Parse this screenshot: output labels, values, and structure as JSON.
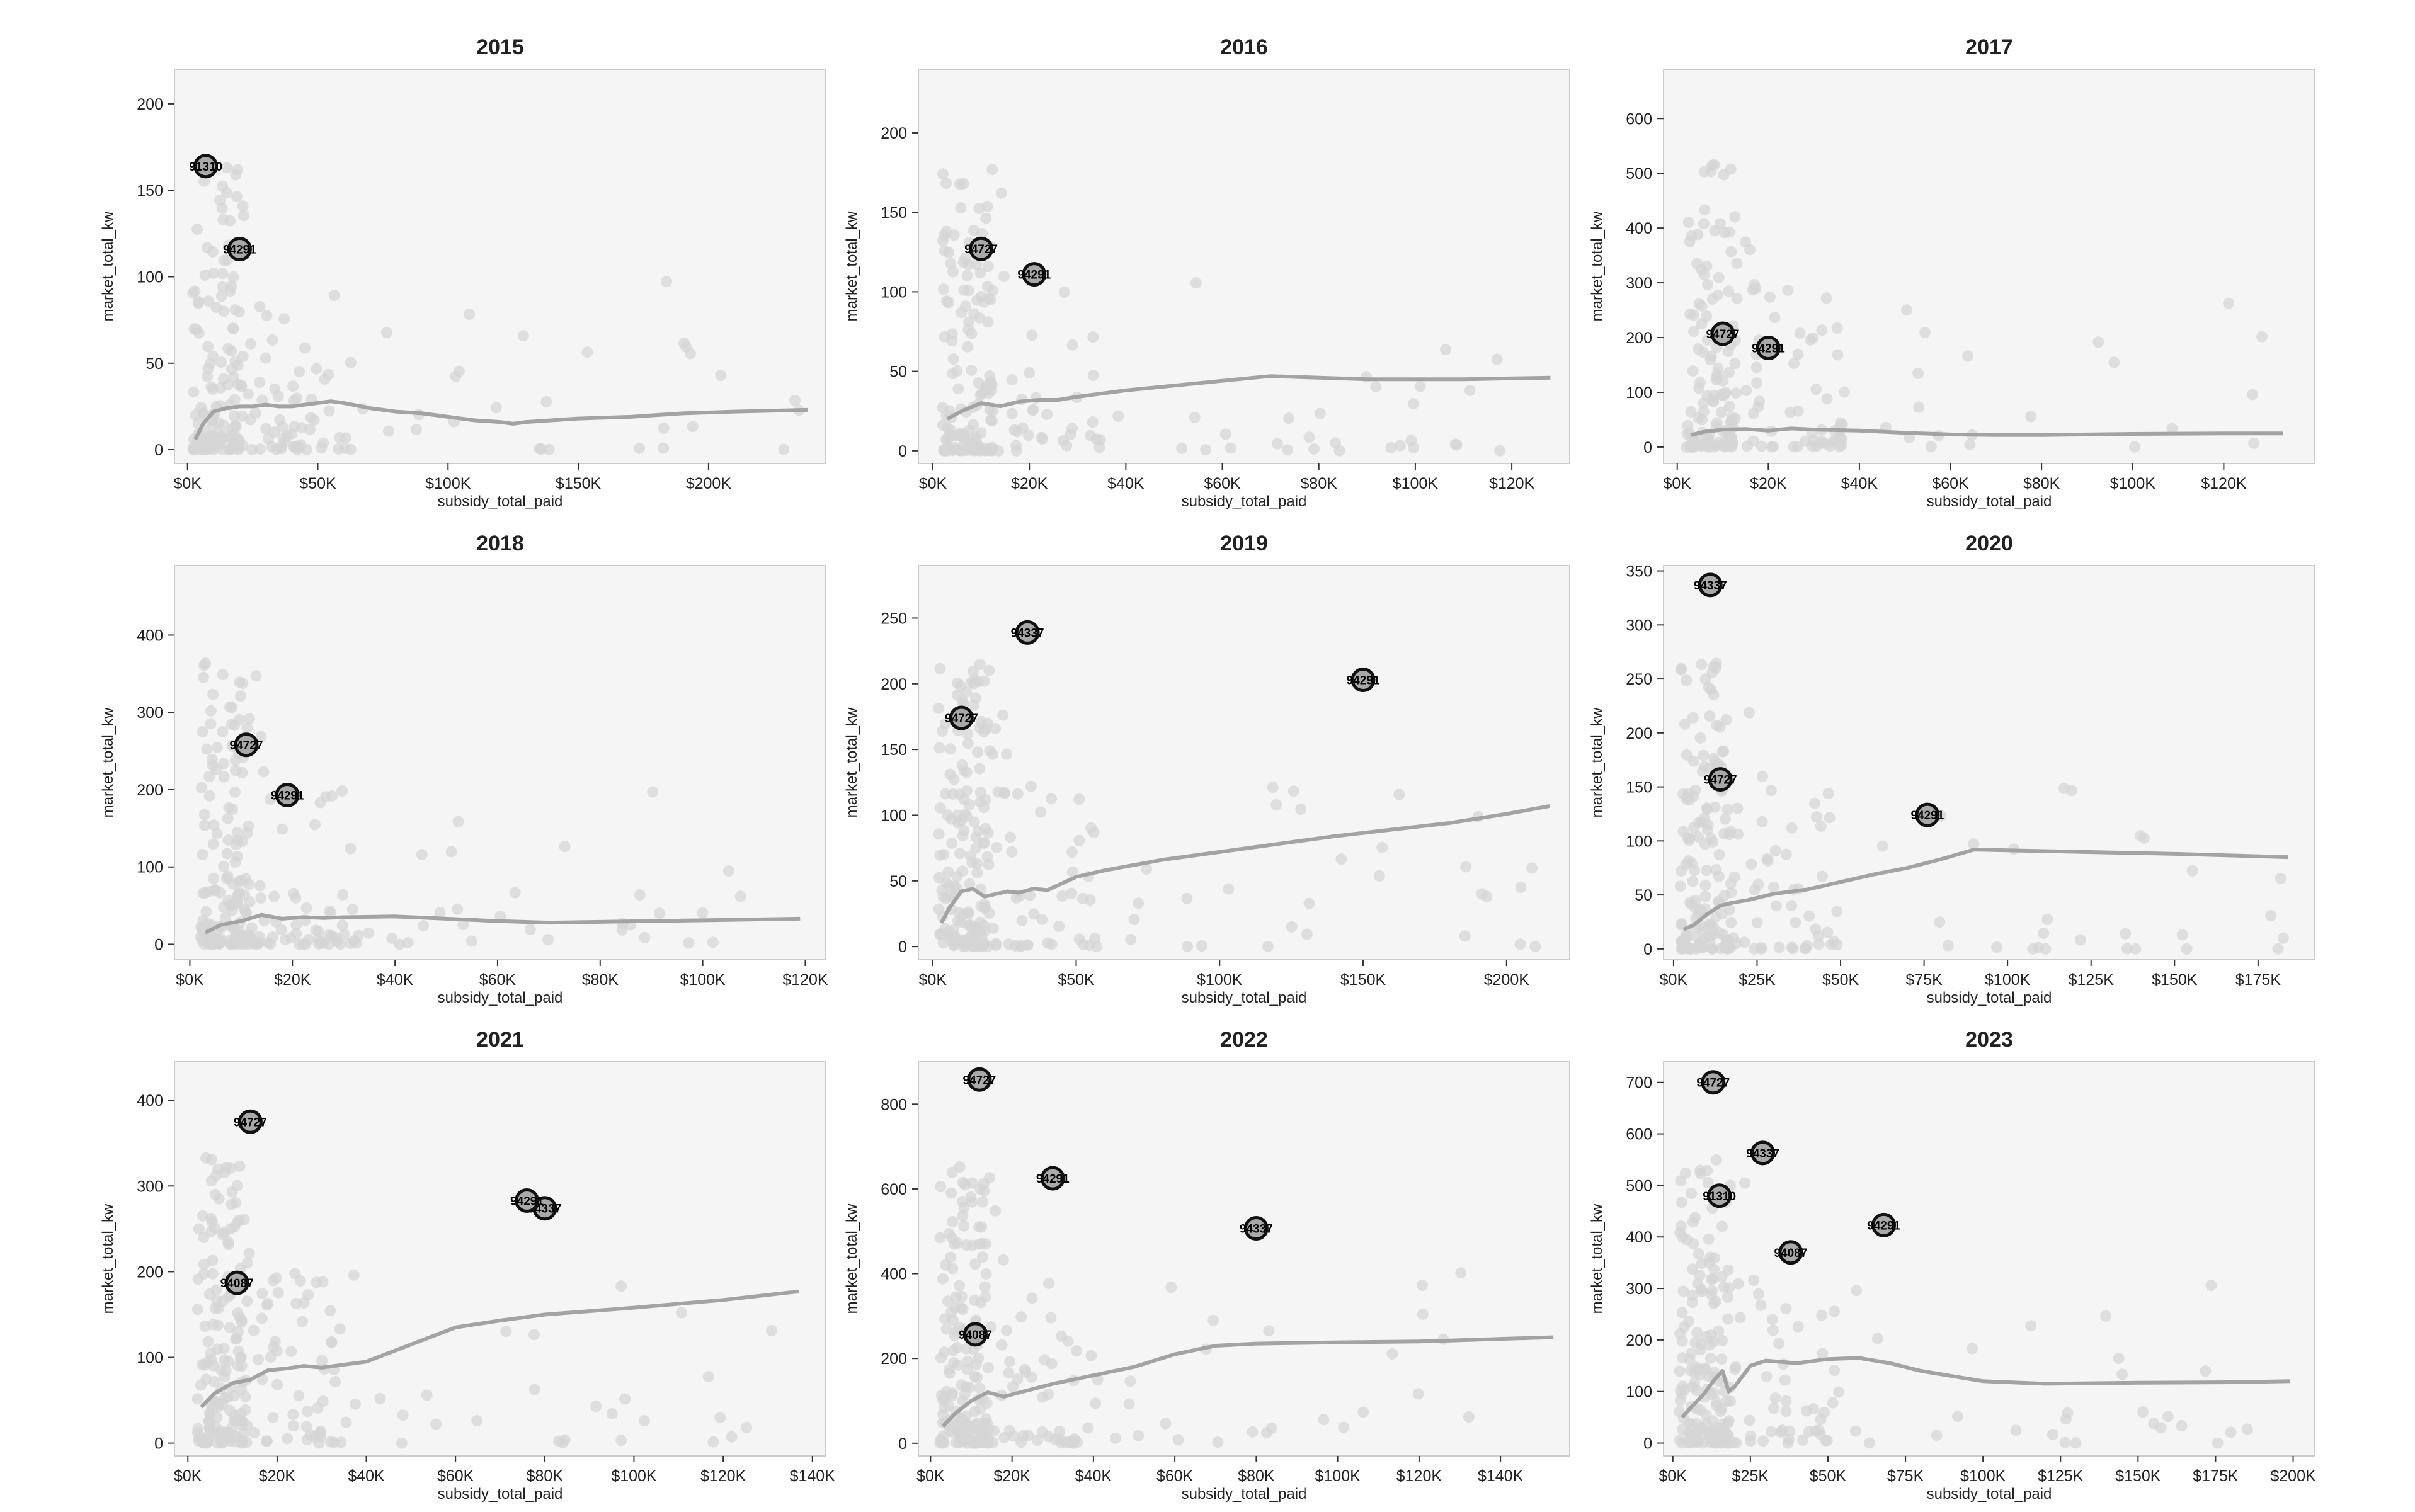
{
  "colors": {
    "panel_bg": "#f5f5f5",
    "panel_border": "#cccccc",
    "points": "#d4d4d4",
    "trend": "#a3a3a3",
    "highlight_fill": "#a9a9a9",
    "highlight_stroke": "#111111",
    "text": "#222222"
  },
  "chart_data": [
    {
      "type": "scatter",
      "title": "2015",
      "xlabel": "subsidy_total_paid",
      "ylabel": "market_total_kw",
      "xlim": [
        -5000,
        245000
      ],
      "ylim": [
        -8,
        220
      ],
      "xticks": [
        0,
        50000,
        100000,
        150000,
        200000
      ],
      "xtick_labels": [
        "$0K",
        "$50K",
        "$100K",
        "$150K",
        "$200K"
      ],
      "yticks": [
        0,
        50,
        100,
        150,
        200
      ],
      "grid": false,
      "trend": {
        "x": [
          3000,
          6000,
          10000,
          15000,
          20000,
          25000,
          30000,
          35000,
          40000,
          50000,
          55000,
          60000,
          70000,
          80000,
          90000,
          100000,
          110000,
          120000,
          125000,
          130000,
          150000,
          170000,
          190000,
          210000,
          238000
        ],
        "y": [
          6,
          15,
          22,
          24,
          25,
          25,
          26,
          25,
          25,
          27,
          28,
          27,
          24,
          22,
          21,
          19,
          17,
          16,
          15,
          16,
          18,
          19,
          21,
          22,
          23
        ]
      },
      "highlights": [
        {
          "label": "91310",
          "x": 7000,
          "y": 164
        },
        {
          "label": "94291",
          "x": 20000,
          "y": 116
        }
      ],
      "scatter_density": 220
    },
    {
      "type": "scatter",
      "title": "2016",
      "xlabel": "subsidy_total_paid",
      "ylabel": "market_total_kw",
      "xlim": [
        -3000,
        132000
      ],
      "ylim": [
        -8,
        240
      ],
      "xticks": [
        0,
        20000,
        40000,
        60000,
        80000,
        100000,
        120000
      ],
      "xtick_labels": [
        "$0K",
        "$20K",
        "$40K",
        "$60K",
        "$80K",
        "$100K",
        "$120K"
      ],
      "yticks": [
        0,
        50,
        100,
        150,
        200
      ],
      "grid": false,
      "trend": {
        "x": [
          3000,
          6000,
          10000,
          14000,
          18000,
          22000,
          26000,
          30000,
          40000,
          50000,
          60000,
          70000,
          80000,
          90000,
          110000,
          128000
        ],
        "y": [
          20,
          25,
          30,
          28,
          31,
          32,
          32,
          34,
          38,
          41,
          44,
          47,
          46,
          45,
          45,
          46
        ]
      },
      "highlights": [
        {
          "label": "94727",
          "x": 10000,
          "y": 127
        },
        {
          "label": "94291",
          "x": 21000,
          "y": 111
        }
      ],
      "scatter_density": 200
    },
    {
      "type": "scatter",
      "title": "2017",
      "xlabel": "subsidy_total_paid",
      "ylabel": "market_total_kw",
      "xlim": [
        -3000,
        140000
      ],
      "ylim": [
        -30,
        690
      ],
      "xticks": [
        0,
        20000,
        40000,
        60000,
        80000,
        100000,
        120000
      ],
      "xtick_labels": [
        "$0K",
        "$20K",
        "$40K",
        "$60K",
        "$80K",
        "$100K",
        "$120K"
      ],
      "yticks": [
        0,
        100,
        200,
        300,
        400,
        500,
        600
      ],
      "grid": false,
      "trend": {
        "x": [
          3000,
          6000,
          10000,
          15000,
          20000,
          25000,
          30000,
          40000,
          50000,
          60000,
          70000,
          80000,
          100000,
          120000,
          133000
        ],
        "y": [
          22,
          28,
          32,
          33,
          30,
          34,
          32,
          30,
          26,
          23,
          22,
          22,
          24,
          25,
          25
        ]
      },
      "highlights": [
        {
          "label": "94727",
          "x": 10000,
          "y": 207
        },
        {
          "label": "94291",
          "x": 20000,
          "y": 181
        }
      ],
      "scatter_density": 200
    },
    {
      "type": "scatter",
      "title": "2018",
      "xlabel": "subsidy_total_paid",
      "ylabel": "market_total_kw",
      "xlim": [
        -3000,
        124000
      ],
      "ylim": [
        -20,
        490
      ],
      "xticks": [
        0,
        20000,
        40000,
        60000,
        80000,
        100000,
        120000
      ],
      "xtick_labels": [
        "$0K",
        "$20K",
        "$40K",
        "$60K",
        "$80K",
        "$100K",
        "$120K"
      ],
      "yticks": [
        0,
        100,
        200,
        300,
        400
      ],
      "grid": false,
      "trend": {
        "x": [
          3000,
          6000,
          10000,
          14000,
          18000,
          22000,
          26000,
          30000,
          40000,
          50000,
          60000,
          70000,
          80000,
          100000,
          119000
        ],
        "y": [
          15,
          25,
          30,
          38,
          33,
          35,
          34,
          35,
          36,
          33,
          30,
          28,
          29,
          31,
          33
        ]
      },
      "highlights": [
        {
          "label": "94727",
          "x": 11000,
          "y": 258
        },
        {
          "label": "94291",
          "x": 19000,
          "y": 193
        }
      ],
      "scatter_density": 240
    },
    {
      "type": "scatter",
      "title": "2019",
      "xlabel": "subsidy_total_paid",
      "ylabel": "market_total_kw",
      "xlim": [
        -5000,
        222000
      ],
      "ylim": [
        -10,
        290
      ],
      "xticks": [
        0,
        50000,
        100000,
        150000,
        200000
      ],
      "xtick_labels": [
        "$0K",
        "$50K",
        "$100K",
        "$150K",
        "$200K"
      ],
      "yticks": [
        0,
        50,
        100,
        150,
        200,
        250
      ],
      "grid": false,
      "trend": {
        "x": [
          3000,
          6000,
          10000,
          14000,
          18000,
          22000,
          26000,
          30000,
          35000,
          40000,
          50000,
          60000,
          80000,
          100000,
          120000,
          140000,
          160000,
          180000,
          200000,
          215000
        ],
        "y": [
          18,
          30,
          42,
          44,
          38,
          40,
          42,
          41,
          44,
          43,
          53,
          58,
          66,
          72,
          78,
          84,
          89,
          94,
          101,
          107
        ]
      },
      "highlights": [
        {
          "label": "94337",
          "x": 33000,
          "y": 239
        },
        {
          "label": "94727",
          "x": 10000,
          "y": 174
        },
        {
          "label": "94291",
          "x": 150000,
          "y": 203
        }
      ],
      "scatter_density": 230
    },
    {
      "type": "scatter",
      "title": "2020",
      "xlabel": "subsidy_total_paid",
      "ylabel": "market_total_kw",
      "xlim": [
        -3000,
        192000
      ],
      "ylim": [
        -10,
        355
      ],
      "xticks": [
        0,
        25000,
        50000,
        75000,
        100000,
        125000,
        150000,
        175000
      ],
      "xtick_labels": [
        "$0K",
        "$25K",
        "$50K",
        "$75K",
        "$100K",
        "$125K",
        "$150K",
        "$175K"
      ],
      "yticks": [
        0,
        50,
        100,
        150,
        200,
        250,
        300,
        350
      ],
      "grid": false,
      "trend": {
        "x": [
          3000,
          6000,
          10000,
          14000,
          18000,
          22000,
          26000,
          30000,
          40000,
          50000,
          60000,
          70000,
          80000,
          90000,
          120000,
          150000,
          184000
        ],
        "y": [
          18,
          22,
          32,
          40,
          43,
          45,
          48,
          51,
          55,
          62,
          69,
          75,
          83,
          92,
          90,
          88,
          85
        ]
      },
      "highlights": [
        {
          "label": "94337",
          "x": 11000,
          "y": 337
        },
        {
          "label": "94727",
          "x": 14000,
          "y": 157
        },
        {
          "label": "94291",
          "x": 76000,
          "y": 124
        }
      ],
      "scatter_density": 220
    },
    {
      "type": "scatter",
      "title": "2021",
      "xlabel": "subsidy_total_paid",
      "ylabel": "market_total_kw",
      "xlim": [
        -3000,
        143000
      ],
      "ylim": [
        -15,
        445
      ],
      "xticks": [
        0,
        20000,
        40000,
        60000,
        80000,
        100000,
        120000,
        140000
      ],
      "xtick_labels": [
        "$0K",
        "$20K",
        "$40K",
        "$60K",
        "$80K",
        "$100K",
        "$120K",
        "$140K"
      ],
      "yticks": [
        0,
        100,
        200,
        300,
        400
      ],
      "grid": false,
      "trend": {
        "x": [
          3000,
          6000,
          10000,
          14000,
          18000,
          22000,
          26000,
          30000,
          40000,
          50000,
          60000,
          70000,
          80000,
          100000,
          120000,
          137000
        ],
        "y": [
          42,
          58,
          70,
          74,
          85,
          87,
          90,
          88,
          95,
          115,
          135,
          143,
          150,
          158,
          167,
          177
        ]
      },
      "highlights": [
        {
          "label": "94727",
          "x": 14000,
          "y": 375
        },
        {
          "label": "94337",
          "x": 80000,
          "y": 274
        },
        {
          "label": "94291",
          "x": 76000,
          "y": 283
        },
        {
          "label": "94087",
          "x": 11000,
          "y": 187
        }
      ],
      "scatter_density": 240
    },
    {
      "type": "scatter",
      "title": "2022",
      "xlabel": "subsidy_total_paid",
      "ylabel": "market_total_kw",
      "xlim": [
        -3000,
        157000
      ],
      "ylim": [
        -30,
        900
      ],
      "xticks": [
        0,
        20000,
        40000,
        60000,
        80000,
        100000,
        120000,
        140000
      ],
      "xtick_labels": [
        "$0K",
        "$20K",
        "$40K",
        "$60K",
        "$80K",
        "$100K",
        "$120K",
        "$140K"
      ],
      "yticks": [
        0,
        200,
        400,
        600,
        800
      ],
      "grid": false,
      "trend": {
        "x": [
          3000,
          6000,
          10000,
          14000,
          18000,
          22000,
          26000,
          30000,
          40000,
          50000,
          60000,
          70000,
          80000,
          100000,
          120000,
          153000
        ],
        "y": [
          40,
          70,
          100,
          120,
          110,
          120,
          130,
          140,
          160,
          180,
          210,
          230,
          235,
          238,
          240,
          250
        ]
      },
      "highlights": [
        {
          "label": "94727",
          "x": 12000,
          "y": 858
        },
        {
          "label": "94291",
          "x": 30000,
          "y": 625
        },
        {
          "label": "94337",
          "x": 80000,
          "y": 507
        },
        {
          "label": "94087",
          "x": 11000,
          "y": 257
        }
      ],
      "scatter_density": 240
    },
    {
      "type": "scatter",
      "title": "2023",
      "xlabel": "subsidy_total_paid",
      "ylabel": "market_total_kw",
      "xlim": [
        -3000,
        207000
      ],
      "ylim": [
        -25,
        740
      ],
      "xticks": [
        0,
        25000,
        50000,
        75000,
        100000,
        125000,
        150000,
        175000,
        200000
      ],
      "xtick_labels": [
        "$0K",
        "$25K",
        "$50K",
        "$75K",
        "$100K",
        "$125K",
        "$150K",
        "$175K",
        "$200K"
      ],
      "yticks": [
        0,
        100,
        200,
        300,
        400,
        500,
        600,
        700
      ],
      "grid": false,
      "trend": {
        "x": [
          3000,
          6000,
          10000,
          13000,
          16000,
          18000,
          20000,
          25000,
          30000,
          40000,
          50000,
          60000,
          70000,
          80000,
          90000,
          100000,
          120000,
          150000,
          180000,
          199000
        ],
        "y": [
          50,
          70,
          95,
          120,
          140,
          100,
          110,
          150,
          160,
          155,
          163,
          165,
          155,
          140,
          130,
          120,
          115,
          117,
          118,
          120
        ]
      },
      "highlights": [
        {
          "label": "94727",
          "x": 13000,
          "y": 700
        },
        {
          "label": "94337",
          "x": 29000,
          "y": 563
        },
        {
          "label": "91310",
          "x": 15000,
          "y": 480
        },
        {
          "label": "94291",
          "x": 68000,
          "y": 423
        },
        {
          "label": "94087",
          "x": 38000,
          "y": 370
        }
      ],
      "scatter_density": 240
    }
  ]
}
